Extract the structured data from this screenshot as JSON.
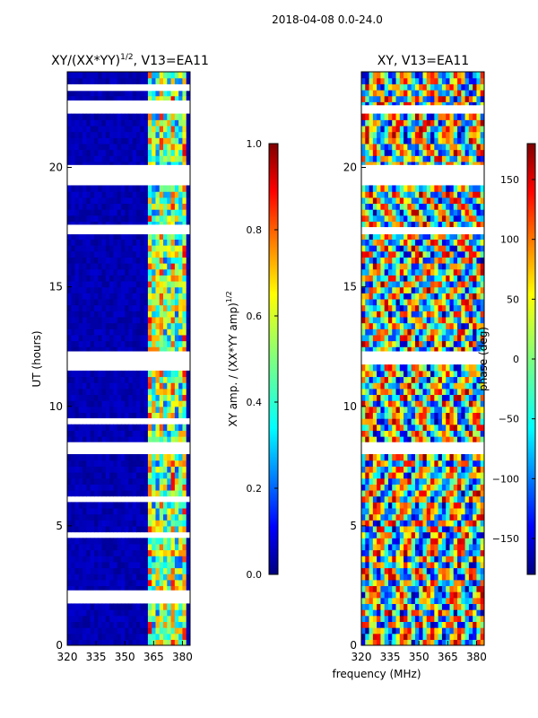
{
  "suptitle": "2018-04-08 0.0-24.0",
  "xlabel_shared": "frequency (MHz)",
  "colors": {
    "jet": [
      "#00007f",
      "#0000ff",
      "#007fff",
      "#00ffff",
      "#7fff7f",
      "#ffff00",
      "#ff7f00",
      "#ff0000",
      "#7f0000"
    ],
    "background": "#ffffff"
  },
  "chart_data": [
    {
      "type": "heatmap",
      "name": "xy-normalized-amplitude",
      "title_main": "XY/(XX*YY)",
      "title_sup": "1/2",
      "title_rest": ", V13=EA11",
      "xlabel": "",
      "ylabel": "UT (hours)",
      "xlim": [
        320,
        384
      ],
      "ylim": [
        0,
        24
      ],
      "xticks": [
        320,
        335,
        350,
        365,
        380
      ],
      "yticks": [
        0,
        5,
        10,
        15,
        20
      ],
      "gap_rows_hours": [
        [
          19.3,
          20.1
        ],
        [
          17.2,
          17.6
        ],
        [
          11.5,
          12.3
        ],
        [
          9.3,
          9.5
        ],
        [
          8.1,
          8.5
        ],
        [
          6.0,
          6.2
        ],
        [
          4.5,
          4.7
        ],
        [
          1.8,
          2.3
        ],
        [
          22.3,
          22.8
        ],
        [
          23.2,
          23.4
        ]
      ],
      "bright_band_mhz": [
        362,
        381
      ],
      "colorbar": {
        "label_main": "XY amp. / (XX*YY amp)",
        "label_sup": "1/2",
        "range": [
          0.0,
          1.0
        ],
        "ticks": [
          "0.0",
          "0.2",
          "0.4",
          "0.6",
          "0.8",
          "1.0"
        ]
      }
    },
    {
      "type": "heatmap",
      "name": "xy-phase",
      "title": "XY, V13=EA11",
      "xlabel": "",
      "ylabel": "",
      "xlim": [
        320,
        384
      ],
      "ylim": [
        0,
        24
      ],
      "xticks": [
        320,
        335,
        350,
        365,
        380
      ],
      "yticks": [
        0,
        5,
        10,
        15,
        20
      ],
      "gap_rows_hours": [
        [
          19.3,
          20.1
        ],
        [
          11.8,
          12.3
        ],
        [
          8.1,
          8.5
        ],
        [
          22.3,
          22.6
        ],
        [
          17.2,
          17.5
        ]
      ],
      "colorbar": {
        "label": "phase (deg)",
        "range": [
          -180,
          180
        ],
        "ticks": [
          "−150",
          "−100",
          "−50",
          "0",
          "50",
          "100",
          "150"
        ]
      }
    }
  ]
}
